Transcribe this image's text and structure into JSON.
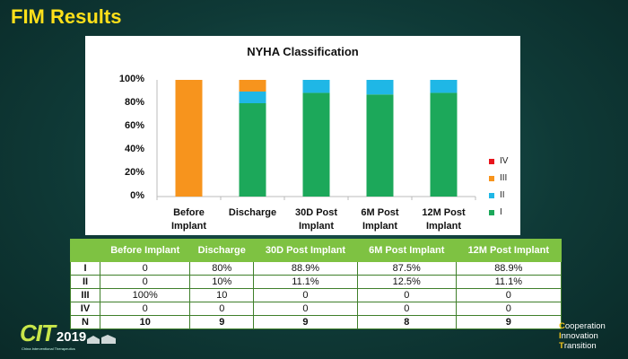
{
  "slide": {
    "title": "FIM Results",
    "logo_letters": "CIT",
    "logo_year": "2019",
    "logo_sub": "China Interventional Therapeutics",
    "tagline": [
      {
        "first": "C",
        "rest": "ooperation"
      },
      {
        "first": "I",
        "rest": "nnovation"
      },
      {
        "first": "T",
        "rest": "ransition"
      }
    ]
  },
  "colors": {
    "I": "#1ca85a",
    "II": "#1fb7e6",
    "III": "#f7941d",
    "IV": "#e8141c",
    "table_header": "#7ec242",
    "title": "#ffe01a"
  },
  "chart_data": {
    "type": "bar",
    "stacked": true,
    "title": "NYHA Classification",
    "categories": [
      [
        "Before",
        "Implant"
      ],
      [
        "Discharge",
        ""
      ],
      [
        "30D Post",
        "Implant"
      ],
      [
        "6M Post",
        "Implant"
      ],
      [
        "12M Post",
        "Implant"
      ]
    ],
    "series": [
      {
        "name": "I",
        "values": [
          0,
          80,
          88.9,
          87.5,
          88.9
        ]
      },
      {
        "name": "II",
        "values": [
          0,
          10,
          11.1,
          12.5,
          11.1
        ]
      },
      {
        "name": "III",
        "values": [
          100,
          10,
          0,
          0,
          0
        ]
      },
      {
        "name": "IV",
        "values": [
          0,
          0,
          0,
          0,
          0
        ]
      }
    ],
    "legend_order": [
      "IV",
      "III",
      "II",
      "I"
    ],
    "ylim": [
      0,
      100
    ],
    "yticks": [
      "0%",
      "20%",
      "40%",
      "60%",
      "80%",
      "100%"
    ],
    "legend_position": "right",
    "grid": false
  },
  "table": {
    "headers": [
      "",
      "Before Implant",
      "Discharge",
      "30D Post Implant",
      "6M Post Implant",
      "12M Post Implant"
    ],
    "rows": [
      [
        "I",
        "0",
        "80%",
        "88.9%",
        "87.5%",
        "88.9%"
      ],
      [
        "II",
        "0",
        "10%",
        "11.1%",
        "12.5%",
        "11.1%"
      ],
      [
        "III",
        "100%",
        "10",
        "0",
        "0",
        "0"
      ],
      [
        "IV",
        "0",
        "0",
        "0",
        "0",
        "0"
      ],
      [
        "N",
        "10",
        "9",
        "9",
        "8",
        "9"
      ]
    ]
  }
}
